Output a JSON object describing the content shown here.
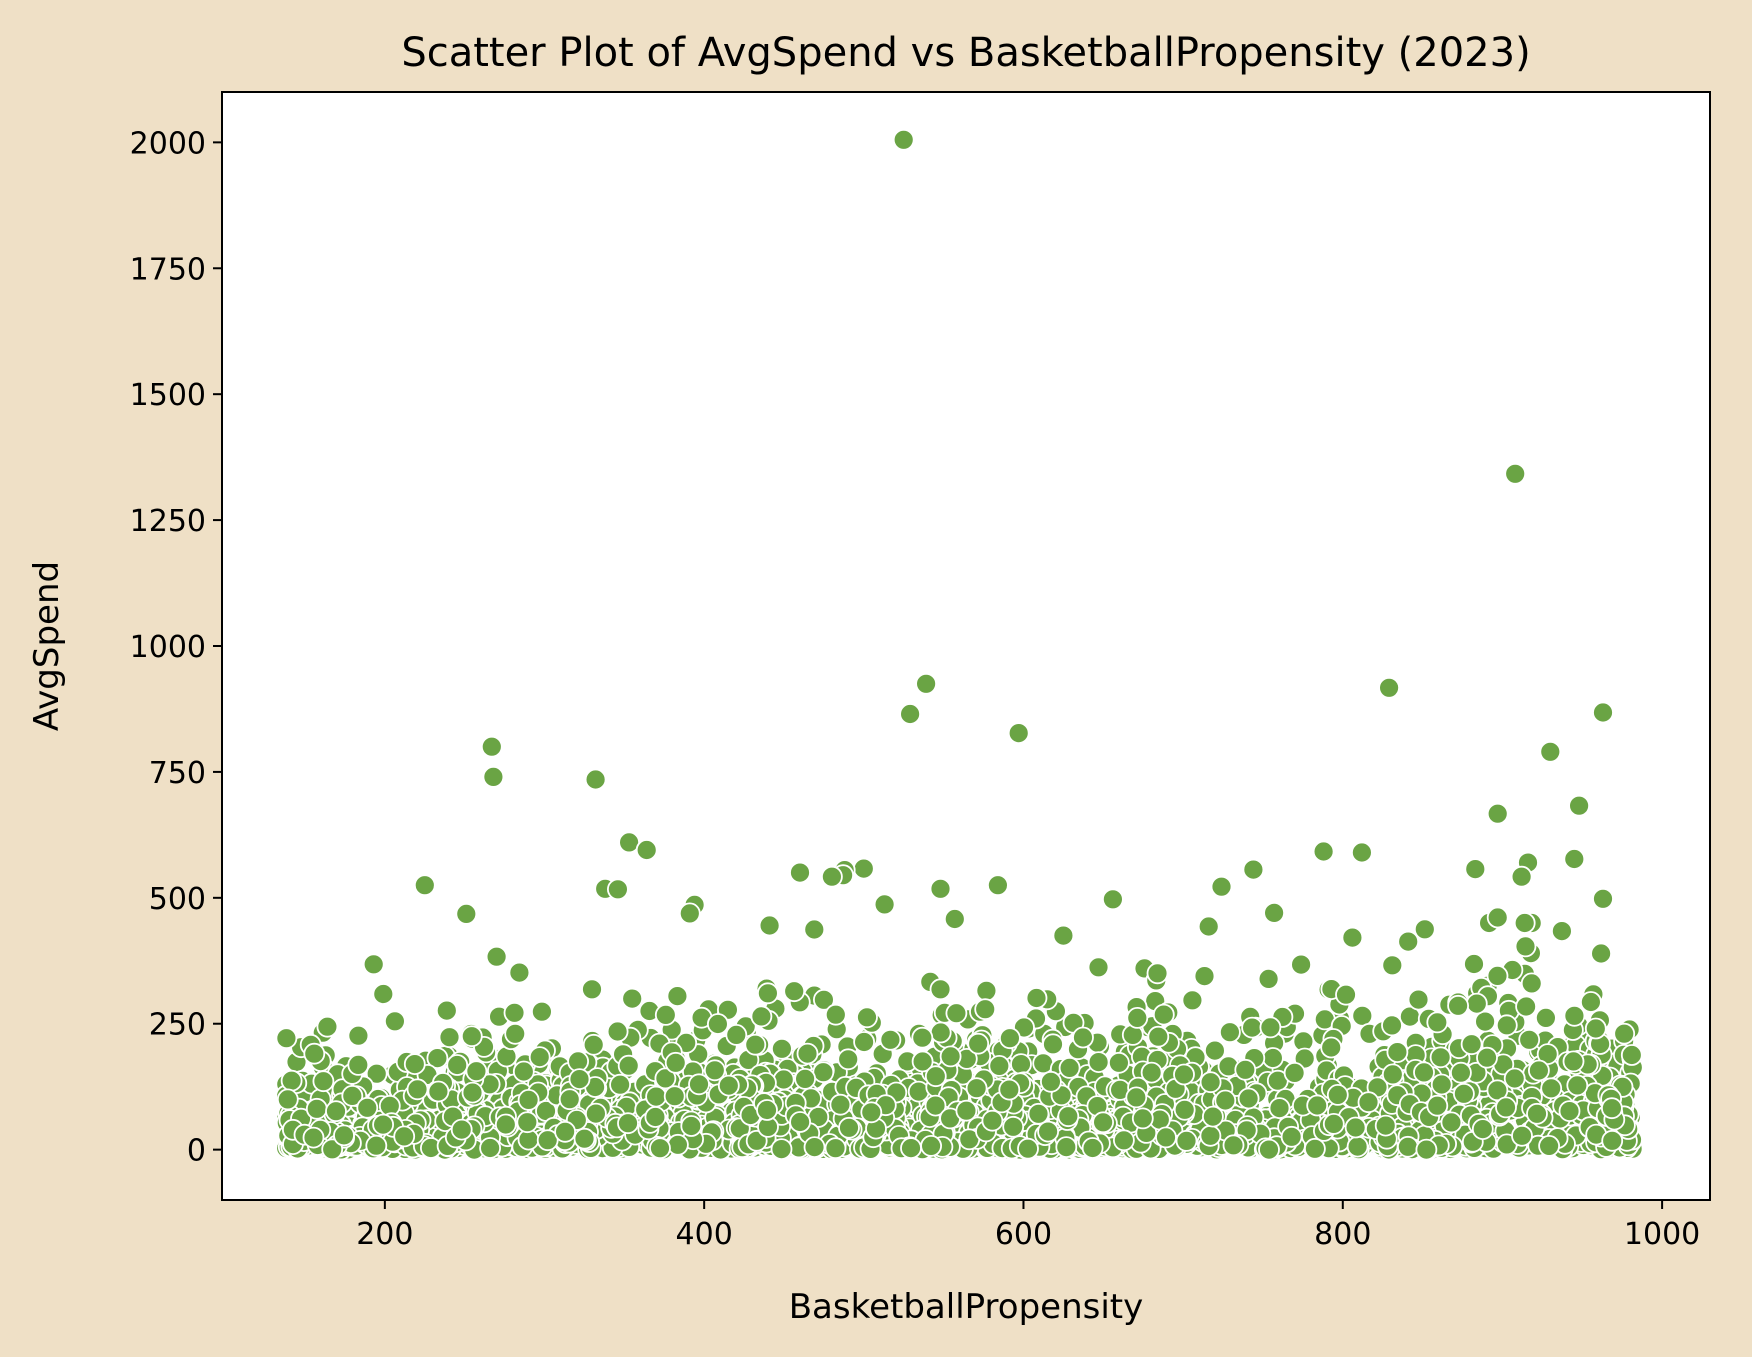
{
  "chart_data": {
    "type": "scatter",
    "title": "Scatter Plot of AvgSpend vs BasketballPropensity (2023)",
    "xlabel": "BasketballPropensity",
    "ylabel": "AvgSpend",
    "xlim": [
      98,
      1030
    ],
    "ylim": [
      -100,
      2100
    ],
    "xticks": [
      200,
      400,
      600,
      800,
      1000
    ],
    "yticks": [
      0,
      250,
      500,
      750,
      1000,
      1250,
      1500,
      1750,
      2000
    ],
    "grid": false,
    "point_color": "#6aa444",
    "outliers": [
      {
        "x": 525,
        "y": 2005
      },
      {
        "x": 908,
        "y": 1342
      },
      {
        "x": 539,
        "y": 925
      },
      {
        "x": 829,
        "y": 917
      },
      {
        "x": 963,
        "y": 868
      },
      {
        "x": 529,
        "y": 865
      },
      {
        "x": 597,
        "y": 827
      },
      {
        "x": 267,
        "y": 800
      },
      {
        "x": 930,
        "y": 790
      },
      {
        "x": 268,
        "y": 740
      },
      {
        "x": 332,
        "y": 735
      },
      {
        "x": 948,
        "y": 683
      },
      {
        "x": 897,
        "y": 667
      },
      {
        "x": 353,
        "y": 610
      },
      {
        "x": 364,
        "y": 595
      },
      {
        "x": 788,
        "y": 592
      },
      {
        "x": 812,
        "y": 590
      },
      {
        "x": 945,
        "y": 577
      },
      {
        "x": 916,
        "y": 570
      },
      {
        "x": 500,
        "y": 558
      },
      {
        "x": 744,
        "y": 556
      },
      {
        "x": 883,
        "y": 557
      },
      {
        "x": 488,
        "y": 555
      },
      {
        "x": 460,
        "y": 550
      },
      {
        "x": 487,
        "y": 545
      },
      {
        "x": 912,
        "y": 542
      },
      {
        "x": 480,
        "y": 542
      },
      {
        "x": 225,
        "y": 525
      },
      {
        "x": 584,
        "y": 525
      },
      {
        "x": 724,
        "y": 522
      },
      {
        "x": 548,
        "y": 518
      },
      {
        "x": 338,
        "y": 518
      },
      {
        "x": 346,
        "y": 517
      },
      {
        "x": 963,
        "y": 498
      },
      {
        "x": 656,
        "y": 497
      },
      {
        "x": 394,
        "y": 486
      },
      {
        "x": 513,
        "y": 487
      },
      {
        "x": 251,
        "y": 468
      },
      {
        "x": 757,
        "y": 470
      },
      {
        "x": 391,
        "y": 469
      },
      {
        "x": 897,
        "y": 461
      },
      {
        "x": 557,
        "y": 458
      },
      {
        "x": 441,
        "y": 445
      },
      {
        "x": 716,
        "y": 443
      },
      {
        "x": 469,
        "y": 437
      },
      {
        "x": 625,
        "y": 425
      },
      {
        "x": 806,
        "y": 421
      },
      {
        "x": 841,
        "y": 413
      },
      {
        "x": 270,
        "y": 383
      },
      {
        "x": 193,
        "y": 368
      },
      {
        "x": 647,
        "y": 362
      },
      {
        "x": 831,
        "y": 366
      },
      {
        "x": 199,
        "y": 309
      },
      {
        "x": 164,
        "y": 244
      }
    ],
    "cluster": {
      "x_range": [
        138,
        982
      ],
      "y_range": [
        0,
        450
      ],
      "n_points": 3600,
      "note": "dense band of points concentrated near AvgSpend 0-250 across the full BasketballPropensity range"
    }
  }
}
